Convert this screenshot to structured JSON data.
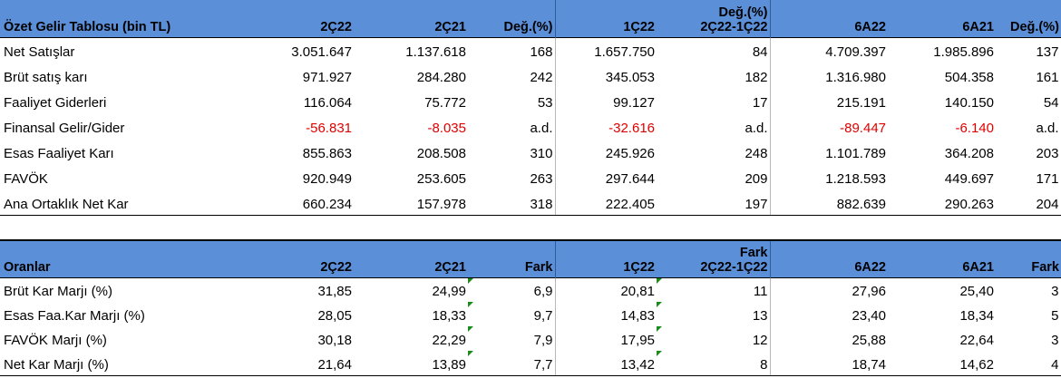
{
  "income_table": {
    "header": {
      "title": "Özet Gelir Tablosu (bin TL)",
      "c1": "2Ç22",
      "c2": "2Ç21",
      "c3": "Değ.(%)",
      "c4": "1Ç22",
      "c5_top": "Değ.(%)",
      "c5_bottom": "2Ç22-1Ç22",
      "c6": "6A22",
      "c7": "6A21",
      "c8": "Değ.(%)"
    },
    "rows": [
      {
        "label": "Net Satışlar",
        "v": [
          "3.051.647",
          "1.137.618",
          "168",
          "1.657.750",
          "84",
          "4.709.397",
          "1.985.896",
          "137"
        ]
      },
      {
        "label": "Brüt satış karı",
        "v": [
          "971.927",
          "284.280",
          "242",
          "345.053",
          "182",
          "1.316.980",
          "504.358",
          "161"
        ]
      },
      {
        "label": "Faaliyet Giderleri",
        "v": [
          "116.064",
          "75.772",
          "53",
          "99.127",
          "17",
          "215.191",
          "140.150",
          "54"
        ]
      },
      {
        "label": "Finansal Gelir/Gider",
        "v": [
          "-56.831",
          "-8.035",
          "a.d.",
          "-32.616",
          "a.d.",
          "-89.447",
          "-6.140",
          "a.d."
        ]
      },
      {
        "label": "Esas Faaliyet Karı",
        "v": [
          "855.863",
          "208.508",
          "310",
          "245.926",
          "248",
          "1.101.789",
          "364.208",
          "203"
        ]
      },
      {
        "label": "FAVÖK",
        "v": [
          "920.949",
          "253.605",
          "263",
          "297.644",
          "209",
          "1.218.593",
          "449.697",
          "171"
        ]
      },
      {
        "label": "Ana Ortaklık Net Kar",
        "v": [
          "660.234",
          "157.978",
          "318",
          "222.405",
          "197",
          "882.639",
          "290.263",
          "204"
        ]
      }
    ]
  },
  "ratios_table": {
    "header": {
      "title": "Oranlar",
      "c1": "2Ç22",
      "c2": "2Ç21",
      "c3": "Fark",
      "c4": "1Ç22",
      "c5_top": "Fark",
      "c5_bottom": "2Ç22-1Ç22",
      "c6": "6A22",
      "c7": "6A21",
      "c8": "Fark"
    },
    "rows": [
      {
        "label": "Brüt Kar Marjı (%)",
        "v": [
          "31,85",
          "24,99",
          "6,9",
          "20,81",
          "11",
          "27,96",
          "25,40",
          "3"
        ]
      },
      {
        "label": "Esas Faa.Kar Marjı (%)",
        "v": [
          "28,05",
          "18,33",
          "9,7",
          "14,83",
          "13",
          "23,40",
          "18,34",
          "5"
        ]
      },
      {
        "label": "FAVÖK Marjı (%)",
        "v": [
          "30,18",
          "22,29",
          "7,9",
          "17,95",
          "12",
          "25,88",
          "22,64",
          "3"
        ]
      },
      {
        "label": "Net Kar Marjı (%)",
        "v": [
          "21,64",
          "13,89",
          "7,7",
          "13,42",
          "8",
          "18,74",
          "14,62",
          "4"
        ]
      }
    ]
  },
  "colors": {
    "header_bg": "#5b8fd8",
    "negative": "#e00000",
    "comment_marker": "#1a8a1a"
  }
}
